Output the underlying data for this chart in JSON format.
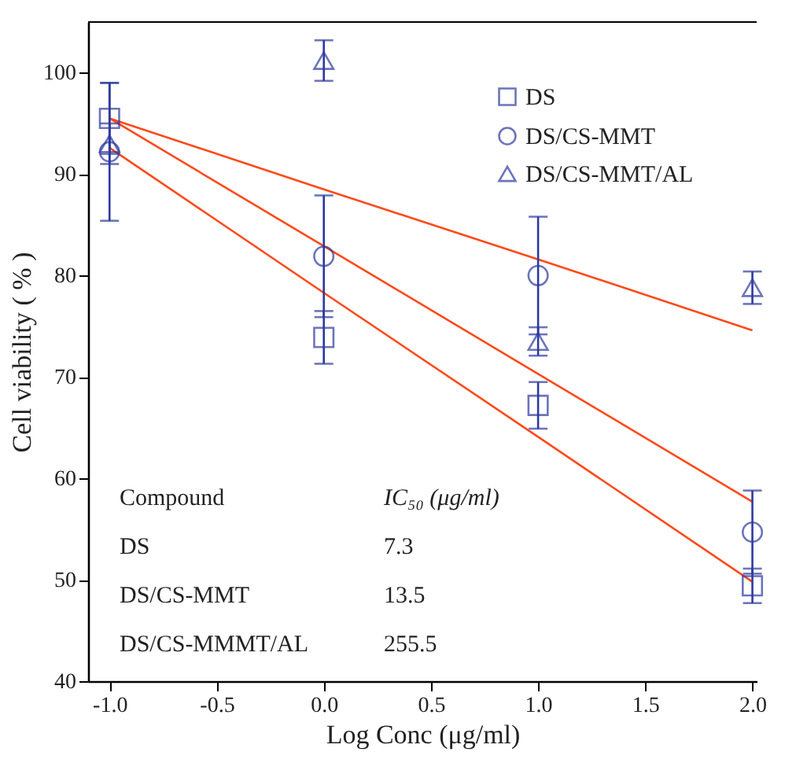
{
  "chart_data": {
    "type": "scatter",
    "xlabel": "Log Conc (μg/ml)",
    "ylabel": "Cell viability ( % )",
    "xlim": [
      -1.1,
      2.02
    ],
    "ylim": [
      40,
      105
    ],
    "xticks": [
      {
        "value": -1,
        "label": "-1.0"
      },
      {
        "value": -0.5,
        "label": "-0.5"
      },
      {
        "value": 0,
        "label": "0.0"
      },
      {
        "value": 0.5,
        "label": "0.5"
      },
      {
        "value": 1,
        "label": "1.0"
      },
      {
        "value": 1.5,
        "label": "1.5"
      },
      {
        "value": 2,
        "label": "2.0"
      }
    ],
    "yticks": [
      40,
      50,
      60,
      70,
      80,
      90,
      100
    ],
    "x": [
      -1,
      0,
      1,
      2
    ],
    "legend": "top right",
    "grid": false,
    "series": [
      {
        "name": "DS",
        "color": "#2e3a9e",
        "marker": "square",
        "values": [
          95.5,
          73.9,
          67.2,
          49.4
        ],
        "errors": [
          3.5,
          2.6,
          2.3,
          1.7
        ]
      },
      {
        "name": "DS/CS-MMT",
        "color": "#2e3a9e",
        "marker": "circle",
        "values": [
          92.2,
          81.9,
          80.0,
          54.7
        ],
        "errors": [
          6.8,
          6.0,
          5.8,
          4.1
        ]
      },
      {
        "name": "DS/CS-MMT/AL",
        "color": "#2e3a9e",
        "marker": "triangle",
        "values": [
          93.0,
          101.2,
          73.5,
          78.8
        ],
        "errors": [
          2.0,
          2.0,
          1.4,
          1.6
        ]
      },
      {
        "type": "line",
        "color": "#ff4a1a",
        "values": [
          95.5,
          88.5,
          81.6,
          74.6
        ]
      },
      {
        "type": "line",
        "color": "#ff4a1a",
        "values": [
          95.5,
          82.9,
          70.3,
          57.7
        ]
      },
      {
        "type": "line",
        "color": "#ff4a1a",
        "values": [
          92.6,
          78.3,
          64.1,
          49.8
        ]
      }
    ],
    "annotations": [
      "Compound",
      "IC₅₀ (μg/ml)",
      "DS",
      "7.3",
      "DS/CS-MMT",
      "13.5",
      "DS/CS-MMMT/AL",
      "255.5"
    ]
  }
}
